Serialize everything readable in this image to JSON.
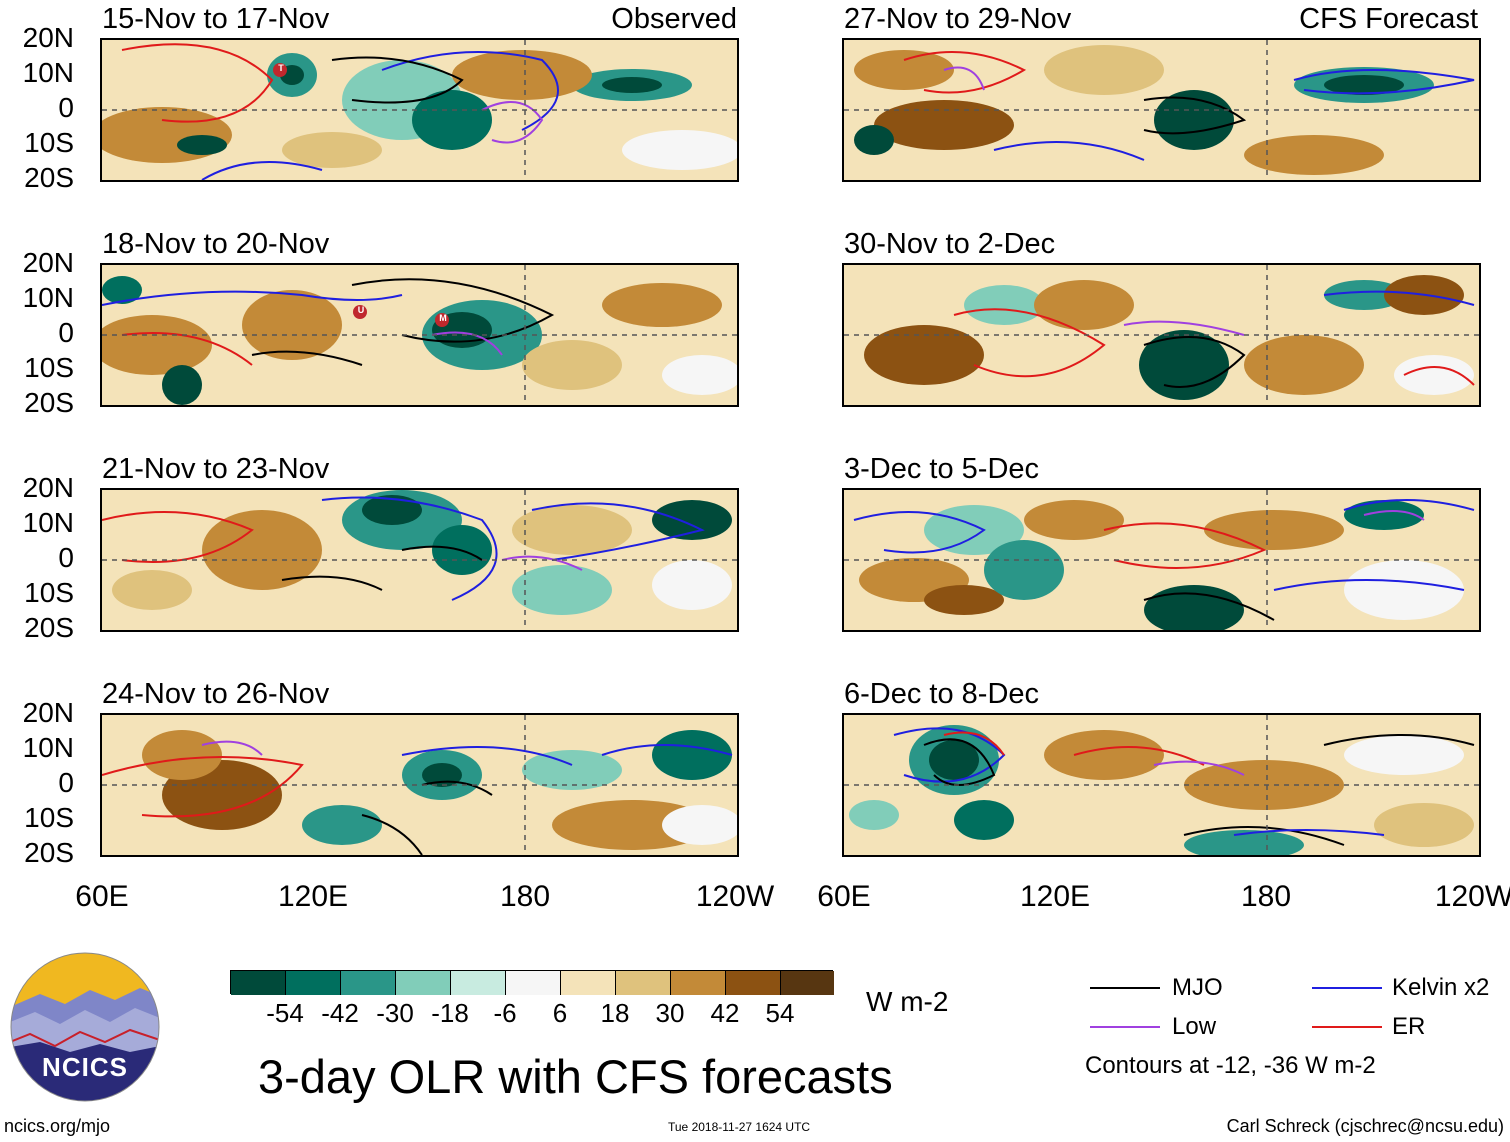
{
  "panels": {
    "left": [
      {
        "title": "15-Nov to 17-Nov",
        "tag": "Observed"
      },
      {
        "title": "18-Nov to 20-Nov",
        "tag": ""
      },
      {
        "title": "21-Nov to 23-Nov",
        "tag": ""
      },
      {
        "title": "24-Nov to 26-Nov",
        "tag": ""
      }
    ],
    "right": [
      {
        "title": "27-Nov to 29-Nov",
        "tag": "CFS Forecast"
      },
      {
        "title": "30-Nov to 2-Dec",
        "tag": ""
      },
      {
        "title": "3-Dec to 5-Dec",
        "tag": ""
      },
      {
        "title": "6-Dec to 8-Dec",
        "tag": ""
      }
    ]
  },
  "storm_markers": {
    "panel1": [
      "T"
    ],
    "panel2": [
      "U",
      "M"
    ]
  },
  "lat_labels": [
    "20N",
    "10N",
    "0",
    "10S",
    "20S"
  ],
  "lon_labels": [
    "60E",
    "120E",
    "180",
    "120W"
  ],
  "colorbar": {
    "colors": [
      "#004a3a",
      "#006f5e",
      "#2a9688",
      "#81cdb9",
      "#c8ebe0",
      "#f6f6f6",
      "#f4e3b9",
      "#dfc27d",
      "#c38a38",
      "#8c5212",
      "#573611"
    ],
    "labels": [
      "-54",
      "-42",
      "-30",
      "-18",
      "-6",
      "6",
      "18",
      "30",
      "42",
      "54"
    ],
    "units": "W m-2"
  },
  "legend": {
    "mjo": {
      "label": "MJO",
      "color": "#000000"
    },
    "kelvin": {
      "label": "Kelvin x2",
      "color": "#1f1fe0"
    },
    "low": {
      "label": "Low",
      "color": "#a040e0"
    },
    "er": {
      "label": "ER",
      "color": "#e01a1a"
    },
    "note": "Contours at -12, -36 W m-2"
  },
  "main_title": "3-day OLR with CFS forecasts",
  "logo_text": "NCICS",
  "footer": {
    "url": "ncics.org/mjo",
    "timestamp": "Tue 2018-11-27 1624 UTC",
    "credit": "Carl Schreck (cjschrec@ncsu.edu)"
  }
}
